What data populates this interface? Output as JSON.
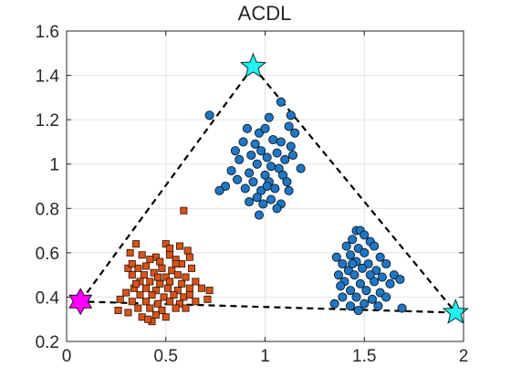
{
  "chart_data": {
    "type": "scatter",
    "title": "ACDL",
    "xlabel": "",
    "ylabel": "",
    "xlim": [
      0,
      2
    ],
    "ylim": [
      0.2,
      1.6
    ],
    "x_ticks": [
      0,
      0.5,
      1,
      1.5,
      2
    ],
    "x_tick_labels": [
      "0",
      "0.5",
      "1",
      "1.5",
      "2"
    ],
    "y_ticks": [
      0.2,
      0.4,
      0.6,
      0.8,
      1.0,
      1.2,
      1.4,
      1.6
    ],
    "y_tick_labels": [
      "0.2",
      "0.4",
      "0.6",
      "0.8",
      "1",
      "1.2",
      "1.4",
      "1.6"
    ],
    "grid": true,
    "colors": {
      "blue_cluster": "#1f77c4",
      "orange_cluster": "#d95319",
      "cyan_star": "#22f2f2",
      "magenta_star": "#ff00ff",
      "dashed_line": "#000000",
      "grid": "#e3e3e3",
      "axis": "#262626"
    },
    "series": [
      {
        "marker": "circle",
        "color": "#1f77c4",
        "points": [
          [
            0.72,
            1.22
          ],
          [
            1.08,
            1.28
          ],
          [
            1.13,
            1.22
          ],
          [
            1.02,
            1.21
          ],
          [
            1.12,
            1.17
          ],
          [
            1.15,
            1.14
          ],
          [
            0.91,
            1.16
          ],
          [
            0.97,
            1.14
          ],
          [
            1.0,
            1.16
          ],
          [
            1.04,
            1.11
          ],
          [
            0.89,
            1.1
          ],
          [
            0.95,
            1.09
          ],
          [
            1.08,
            1.1
          ],
          [
            1.13,
            1.08
          ],
          [
            0.85,
            1.06
          ],
          [
            0.93,
            1.04
          ],
          [
            0.98,
            1.06
          ],
          [
            1.01,
            1.03
          ],
          [
            1.06,
            1.05
          ],
          [
            1.1,
            1.02
          ],
          [
            1.14,
            1.04
          ],
          [
            0.87,
            1.02
          ],
          [
            0.96,
            1.0
          ],
          [
            1.03,
            0.99
          ],
          [
            1.07,
            0.98
          ],
          [
            0.83,
            0.97
          ],
          [
            0.92,
            0.96
          ],
          [
            1.0,
            0.95
          ],
          [
            1.09,
            0.95
          ],
          [
            1.18,
            0.98
          ],
          [
            0.86,
            0.93
          ],
          [
            0.94,
            0.92
          ],
          [
            1.02,
            0.92
          ],
          [
            1.11,
            0.92
          ],
          [
            0.8,
            0.9
          ],
          [
            0.9,
            0.89
          ],
          [
            0.98,
            0.88
          ],
          [
            1.05,
            0.89
          ],
          [
            1.12,
            0.88
          ],
          [
            0.77,
            0.88
          ],
          [
            0.96,
            0.85
          ],
          [
            1.03,
            0.84
          ],
          [
            1.08,
            0.82
          ],
          [
            1.06,
            0.8
          ],
          [
            0.99,
            0.82
          ],
          [
            0.92,
            0.83
          ],
          [
            0.97,
            0.77
          ],
          [
            1.01,
            0.9
          ],
          [
            1.46,
            0.7
          ],
          [
            1.48,
            0.7
          ],
          [
            1.5,
            0.68
          ],
          [
            1.44,
            0.66
          ],
          [
            1.53,
            0.65
          ],
          [
            1.41,
            0.63
          ],
          [
            1.47,
            0.62
          ],
          [
            1.55,
            0.63
          ],
          [
            1.36,
            0.58
          ],
          [
            1.43,
            0.59
          ],
          [
            1.5,
            0.6
          ],
          [
            1.58,
            0.58
          ],
          [
            1.39,
            0.55
          ],
          [
            1.46,
            0.56
          ],
          [
            1.52,
            0.55
          ],
          [
            1.61,
            0.55
          ],
          [
            1.42,
            0.52
          ],
          [
            1.49,
            0.53
          ],
          [
            1.56,
            0.52
          ],
          [
            1.37,
            0.5
          ],
          [
            1.45,
            0.5
          ],
          [
            1.53,
            0.5
          ],
          [
            1.59,
            0.49
          ],
          [
            1.65,
            0.5
          ],
          [
            1.4,
            0.47
          ],
          [
            1.48,
            0.46
          ],
          [
            1.55,
            0.47
          ],
          [
            1.63,
            0.46
          ],
          [
            1.68,
            0.48
          ],
          [
            1.43,
            0.43
          ],
          [
            1.51,
            0.43
          ],
          [
            1.58,
            0.42
          ],
          [
            1.39,
            0.4
          ],
          [
            1.46,
            0.4
          ],
          [
            1.54,
            0.39
          ],
          [
            1.61,
            0.4
          ],
          [
            1.35,
            0.37
          ],
          [
            1.43,
            0.36
          ],
          [
            1.5,
            0.37
          ],
          [
            1.57,
            0.36
          ],
          [
            1.47,
            0.34
          ],
          [
            1.69,
            0.35
          ],
          [
            1.38,
            0.45
          ],
          [
            1.44,
            0.55
          ]
        ]
      },
      {
        "marker": "square",
        "color": "#d95319",
        "points": [
          [
            0.59,
            0.79
          ],
          [
            0.35,
            0.64
          ],
          [
            0.5,
            0.64
          ],
          [
            0.57,
            0.63
          ],
          [
            0.61,
            0.61
          ],
          [
            0.32,
            0.6
          ],
          [
            0.38,
            0.59
          ],
          [
            0.45,
            0.58
          ],
          [
            0.52,
            0.59
          ],
          [
            0.55,
            0.57
          ],
          [
            0.62,
            0.58
          ],
          [
            0.42,
            0.57
          ],
          [
            0.47,
            0.56
          ],
          [
            0.58,
            0.55
          ],
          [
            0.31,
            0.53
          ],
          [
            0.36,
            0.53
          ],
          [
            0.4,
            0.54
          ],
          [
            0.48,
            0.53
          ],
          [
            0.53,
            0.52
          ],
          [
            0.63,
            0.53
          ],
          [
            0.33,
            0.5
          ],
          [
            0.39,
            0.5
          ],
          [
            0.44,
            0.51
          ],
          [
            0.5,
            0.49
          ],
          [
            0.56,
            0.5
          ],
          [
            0.6,
            0.49
          ],
          [
            0.37,
            0.47
          ],
          [
            0.42,
            0.47
          ],
          [
            0.47,
            0.46
          ],
          [
            0.52,
            0.47
          ],
          [
            0.58,
            0.46
          ],
          [
            0.65,
            0.47
          ],
          [
            0.34,
            0.44
          ],
          [
            0.4,
            0.44
          ],
          [
            0.45,
            0.43
          ],
          [
            0.51,
            0.44
          ],
          [
            0.56,
            0.43
          ],
          [
            0.62,
            0.44
          ],
          [
            0.68,
            0.44
          ],
          [
            0.3,
            0.42
          ],
          [
            0.37,
            0.41
          ],
          [
            0.43,
            0.41
          ],
          [
            0.49,
            0.4
          ],
          [
            0.54,
            0.41
          ],
          [
            0.59,
            0.4
          ],
          [
            0.27,
            0.39
          ],
          [
            0.33,
            0.38
          ],
          [
            0.4,
            0.38
          ],
          [
            0.46,
            0.37
          ],
          [
            0.52,
            0.38
          ],
          [
            0.57,
            0.37
          ],
          [
            0.65,
            0.38
          ],
          [
            0.72,
            0.43
          ],
          [
            0.71,
            0.39
          ],
          [
            0.36,
            0.35
          ],
          [
            0.42,
            0.35
          ],
          [
            0.48,
            0.34
          ],
          [
            0.55,
            0.35
          ],
          [
            0.26,
            0.34
          ],
          [
            0.31,
            0.33
          ],
          [
            0.45,
            0.32
          ],
          [
            0.38,
            0.31
          ],
          [
            0.5,
            0.31
          ],
          [
            0.43,
            0.29
          ],
          [
            0.35,
            0.46
          ],
          [
            0.55,
            0.55
          ],
          [
            0.6,
            0.35
          ],
          [
            0.52,
            0.62
          ],
          [
            0.46,
            0.49
          ],
          [
            0.41,
            0.3
          ],
          [
            0.62,
            0.41
          ],
          [
            0.33,
            0.55
          ]
        ]
      },
      {
        "marker": "star5",
        "color": "#22f2f2",
        "points": [
          [
            0.94,
            1.44
          ],
          [
            1.96,
            0.33
          ]
        ]
      },
      {
        "marker": "hexagram",
        "color": "#ff00ff",
        "points": [
          [
            0.07,
            0.38
          ]
        ]
      }
    ],
    "dashed_triangle": [
      [
        0.07,
        0.38
      ],
      [
        0.94,
        1.44
      ],
      [
        1.96,
        0.33
      ]
    ]
  }
}
